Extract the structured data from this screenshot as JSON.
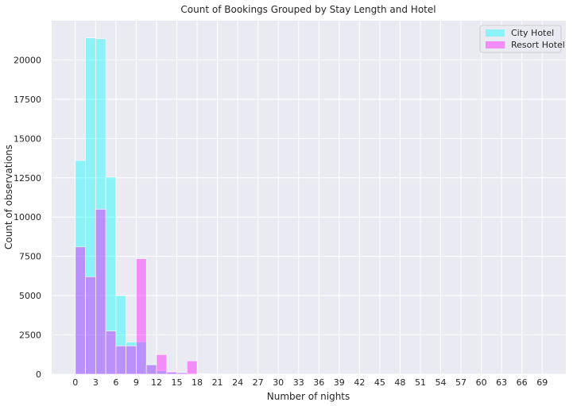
{
  "chart_data": {
    "type": "bar",
    "title": "Count of Bookings Grouped by Stay Length and Hotel",
    "xlabel": "Number of nights",
    "ylabel": "Count of observations",
    "xlim": [
      -3.5,
      72.5
    ],
    "ylim": [
      0,
      22500
    ],
    "bin_width": 1.5,
    "x_ticks": [
      0,
      3,
      6,
      9,
      12,
      15,
      18,
      21,
      24,
      27,
      30,
      33,
      36,
      39,
      42,
      45,
      48,
      51,
      54,
      57,
      60,
      63,
      66,
      69
    ],
    "y_ticks": [
      0,
      2500,
      5000,
      7500,
      10000,
      12500,
      15000,
      17500,
      20000
    ],
    "grid": true,
    "legend": "top-right",
    "series": [
      {
        "name": "City Hotel",
        "color": "#00ffff",
        "bins": [
          {
            "x": 0,
            "value": 13600
          },
          {
            "x": 1.5,
            "value": 21400
          },
          {
            "x": 3,
            "value": 21350
          },
          {
            "x": 4.5,
            "value": 12550
          },
          {
            "x": 6,
            "value": 5000
          },
          {
            "x": 7.5,
            "value": 2050
          },
          {
            "x": 9,
            "value": 2050
          },
          {
            "x": 10.5,
            "value": 650
          },
          {
            "x": 12,
            "value": 220
          },
          {
            "x": 13.5,
            "value": 120
          },
          {
            "x": 15,
            "value": 90
          },
          {
            "x": 16.5,
            "value": 40
          },
          {
            "x": 18,
            "value": 15
          },
          {
            "x": 19.5,
            "value": 10
          }
        ]
      },
      {
        "name": "Resort Hotel",
        "color": "#ff00ff",
        "bins": [
          {
            "x": 0,
            "value": 8100
          },
          {
            "x": 1.5,
            "value": 6200
          },
          {
            "x": 3,
            "value": 10500
          },
          {
            "x": 4.5,
            "value": 2750
          },
          {
            "x": 6,
            "value": 1800
          },
          {
            "x": 7.5,
            "value": 1800
          },
          {
            "x": 9,
            "value": 7350
          },
          {
            "x": 10.5,
            "value": 600
          },
          {
            "x": 12,
            "value": 1250
          },
          {
            "x": 13.5,
            "value": 150
          },
          {
            "x": 15,
            "value": 100
          },
          {
            "x": 16.5,
            "value": 850
          },
          {
            "x": 18,
            "value": 30
          },
          {
            "x": 19.5,
            "value": 20
          }
        ]
      }
    ]
  }
}
